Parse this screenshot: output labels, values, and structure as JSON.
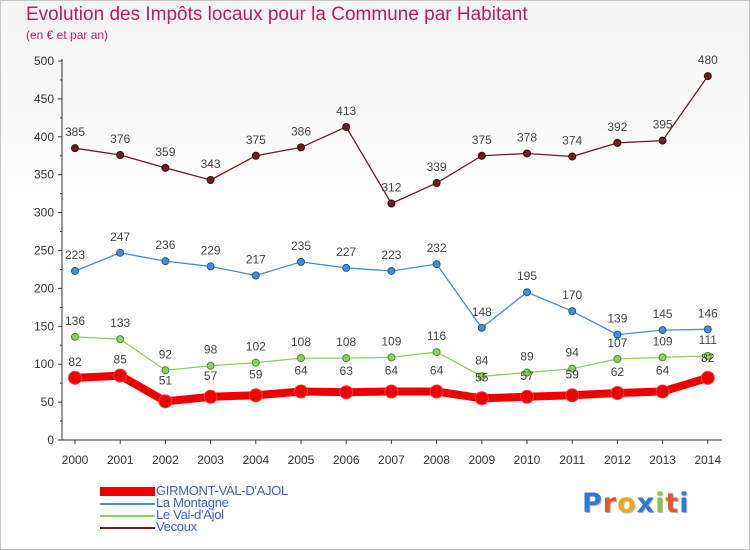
{
  "title": "Evolution des Impôts locaux pour la Commune par Habitant",
  "subtitle": "(en € et par an)",
  "brand": {
    "letters": [
      "P",
      "r",
      "o",
      "x",
      "i",
      "t",
      "i"
    ],
    "colors": [
      "#2e7bd6",
      "#e8562a",
      "#f0a81a",
      "#2e7bd6",
      "#8bc34a",
      "#e8562a",
      "#2e7bd6"
    ]
  },
  "chart_data": {
    "type": "line",
    "title": "Evolution des Impôts locaux pour la Commune par Habitant",
    "subtitle": "(en € et par an)",
    "x": [
      "2000",
      "2001",
      "2002",
      "2003",
      "2004",
      "2005",
      "2006",
      "2007",
      "2008",
      "2009",
      "2010",
      "2011",
      "2012",
      "2013",
      "2014"
    ],
    "ylim": [
      0,
      500
    ],
    "yticks": [
      0,
      50,
      100,
      150,
      200,
      250,
      300,
      350,
      400,
      450,
      500
    ],
    "grid": false,
    "legend_position": "bottom-left",
    "series": [
      {
        "name": "GIRMONT-VAL-D'AJOL",
        "color": "#ee0000",
        "values": [
          82,
          85,
          51,
          57,
          59,
          64,
          63,
          64,
          64,
          55,
          57,
          59,
          62,
          64,
          82
        ]
      },
      {
        "name": "La Montagne",
        "color": "#4a8ed0",
        "values": [
          223,
          247,
          236,
          229,
          217,
          235,
          227,
          223,
          232,
          148,
          195,
          170,
          139,
          145,
          146
        ]
      },
      {
        "name": "Le Val-d'Ajol",
        "color": "#8ed15e",
        "values": [
          136,
          133,
          92,
          98,
          102,
          108,
          108,
          109,
          116,
          84,
          89,
          94,
          107,
          109,
          111
        ]
      },
      {
        "name": "Vecoux",
        "color": "#6b1f24",
        "values": [
          385,
          376,
          359,
          343,
          375,
          386,
          413,
          312,
          339,
          375,
          378,
          374,
          392,
          395,
          480
        ]
      }
    ]
  }
}
